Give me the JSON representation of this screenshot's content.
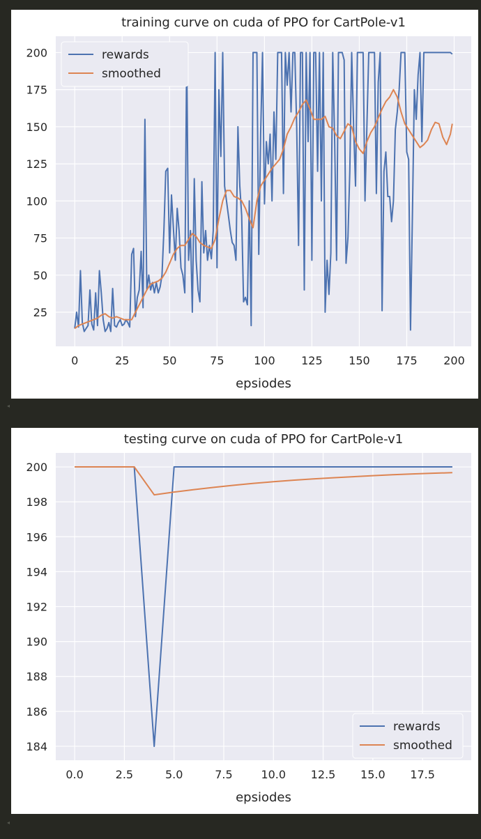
{
  "colors": {
    "background": "#272822",
    "plot_bg": "#eaeaf2",
    "rewards": "#4c72b0",
    "smoothed": "#dd8452"
  },
  "chart_data": [
    {
      "type": "line",
      "title": "training curve on cuda of PPO for CartPole-v1",
      "xlabel": "epsiodes",
      "ylabel": "",
      "xlim": [
        -10,
        209
      ],
      "ylim": [
        2,
        211
      ],
      "xticks": [
        0,
        25,
        50,
        75,
        100,
        125,
        150,
        175,
        200
      ],
      "xtick_labels": [
        "0",
        "25",
        "50",
        "75",
        "100",
        "125",
        "150",
        "175",
        "200"
      ],
      "yticks": [
        25,
        50,
        75,
        100,
        125,
        150,
        175,
        200
      ],
      "ytick_labels": [
        "25",
        "50",
        "75",
        "100",
        "125",
        "150",
        "175",
        "200"
      ],
      "grid": true,
      "legend": "upper left",
      "series": [
        {
          "name": "rewards",
          "color": "#4c72b0",
          "x": [
            0,
            1,
            2,
            3,
            4,
            5,
            6,
            7,
            8,
            9,
            10,
            11,
            12,
            13,
            14,
            15,
            16,
            17,
            18,
            19,
            20,
            21,
            22,
            23,
            24,
            25,
            26,
            27,
            28,
            29,
            30,
            31,
            32,
            33,
            34,
            35,
            36,
            37,
            38,
            39,
            40,
            41,
            42,
            43,
            44,
            45,
            46,
            47,
            48,
            49,
            50,
            51,
            52,
            53,
            54,
            55,
            56,
            57,
            58,
            59,
            60,
            61,
            62,
            63,
            64,
            65,
            66,
            67,
            68,
            69,
            70,
            71,
            72,
            73,
            74,
            75,
            76,
            77,
            78,
            79,
            80,
            81,
            82,
            83,
            84,
            85,
            86,
            87,
            88,
            89,
            90,
            91,
            92,
            93,
            94,
            95,
            96,
            97,
            98,
            99,
            100,
            101,
            102,
            103,
            104,
            105,
            106,
            107,
            108,
            109,
            110,
            111,
            112,
            113,
            114,
            115,
            116,
            117,
            118,
            119,
            120,
            121,
            122,
            123,
            124,
            125,
            126,
            127,
            128,
            129,
            130,
            131,
            132,
            133,
            134,
            135,
            136,
            137,
            138,
            139,
            140,
            141,
            142,
            143,
            144,
            145,
            146,
            147,
            148,
            149,
            150,
            151,
            152,
            153,
            154,
            155,
            156,
            157,
            158,
            159,
            160,
            161,
            162,
            163,
            164,
            165,
            166,
            167,
            168,
            169,
            170,
            171,
            172,
            173,
            174,
            175,
            176,
            177,
            178,
            179,
            180,
            181,
            182,
            183,
            184,
            185,
            186,
            187,
            188,
            189,
            190,
            191,
            192,
            193,
            194,
            195,
            196,
            197,
            198,
            199
          ],
          "values": [
            14,
            25,
            15,
            53,
            18,
            12,
            14,
            16,
            40,
            17,
            13,
            38,
            16,
            53,
            38,
            20,
            12,
            14,
            18,
            12,
            41,
            16,
            15,
            18,
            20,
            16,
            17,
            20,
            18,
            15,
            64,
            68,
            22,
            35,
            40,
            66,
            28,
            155,
            40,
            50,
            40,
            45,
            38,
            45,
            38,
            42,
            50,
            80,
            120,
            122,
            65,
            104,
            82,
            60,
            95,
            80,
            55,
            50,
            38,
            200,
            60,
            80,
            25,
            115,
            60,
            40,
            32,
            113,
            65,
            80,
            60,
            70,
            61,
            80,
            200,
            55,
            175,
            130,
            200,
            110,
            100,
            90,
            80,
            72,
            70,
            60,
            150,
            110,
            90,
            32,
            35,
            30,
            100,
            16,
            200,
            200,
            200,
            64,
            145,
            200,
            98,
            140,
            125,
            145,
            100,
            160,
            128,
            200,
            200,
            200,
            105,
            200,
            178,
            200,
            160,
            200,
            200,
            150,
            70,
            200,
            200,
            40,
            200,
            140,
            200,
            60,
            200,
            200,
            120,
            200,
            100,
            200,
            25,
            60,
            37,
            65,
            200,
            140,
            60,
            200,
            200,
            200,
            195,
            58,
            75,
            120,
            200,
            150,
            110,
            200,
            200,
            200,
            200,
            100,
            150,
            200,
            200,
            200,
            200,
            105,
            180,
            200,
            26,
            120,
            133,
            103,
            103,
            86,
            100,
            148,
            160,
            175,
            200,
            200,
            200,
            133,
            128,
            13,
            90,
            175,
            155,
            185,
            200,
            140,
            200,
            200,
            200,
            200,
            200,
            200,
            200,
            200,
            200,
            200,
            200,
            200,
            200,
            200,
            200,
            199
          ],
          "note": "values estimated from plot"
        },
        {
          "name": "smoothed",
          "color": "#dd8452",
          "x": [
            0,
            2,
            4,
            6,
            8,
            10,
            12,
            14,
            16,
            18,
            20,
            22,
            24,
            26,
            28,
            30,
            32,
            34,
            36,
            38,
            40,
            42,
            44,
            46,
            48,
            50,
            52,
            54,
            56,
            58,
            60,
            62,
            64,
            66,
            68,
            70,
            72,
            74,
            76,
            78,
            80,
            82,
            84,
            86,
            88,
            90,
            92,
            94,
            96,
            98,
            100,
            102,
            104,
            106,
            108,
            110,
            112,
            114,
            116,
            118,
            120,
            122,
            124,
            126,
            128,
            130,
            132,
            134,
            136,
            138,
            140,
            142,
            144,
            146,
            148,
            150,
            152,
            154,
            156,
            158,
            160,
            162,
            164,
            166,
            168,
            170,
            172,
            174,
            176,
            178,
            180,
            182,
            184,
            186,
            188,
            190,
            192,
            194,
            196,
            198,
            199
          ],
          "values": [
            14,
            16,
            17,
            18,
            19,
            20,
            21,
            23,
            24,
            22,
            21,
            22,
            21,
            20,
            20,
            20,
            25,
            30,
            35,
            40,
            44,
            45,
            46,
            48,
            52,
            58,
            64,
            68,
            70,
            70,
            74,
            78,
            76,
            72,
            70,
            69,
            68,
            74,
            88,
            100,
            107,
            107,
            103,
            102,
            100,
            95,
            88,
            82,
            100,
            110,
            114,
            118,
            122,
            125,
            128,
            135,
            145,
            150,
            156,
            160,
            165,
            168,
            162,
            155,
            155,
            155,
            157,
            150,
            149,
            144,
            142,
            147,
            152,
            150,
            140,
            135,
            132,
            140,
            146,
            150,
            156,
            162,
            167,
            170,
            175,
            170,
            160,
            152,
            148,
            144,
            140,
            136,
            138,
            141,
            148,
            153,
            152,
            143,
            138,
            145,
            152
          ]
        }
      ]
    },
    {
      "type": "line",
      "title": "testing curve on cuda of PPO for CartPole-v1",
      "xlabel": "epsiodes",
      "ylabel": "",
      "xlim": [
        -0.95,
        19.95
      ],
      "ylim": [
        183.2,
        200.8
      ],
      "xticks": [
        0,
        2.5,
        5,
        7.5,
        10,
        12.5,
        15,
        17.5
      ],
      "xtick_labels": [
        "0.0",
        "2.5",
        "5.0",
        "7.5",
        "10.0",
        "12.5",
        "15.0",
        "17.5"
      ],
      "yticks": [
        184,
        186,
        188,
        190,
        192,
        194,
        196,
        198,
        200
      ],
      "ytick_labels": [
        "184",
        "186",
        "188",
        "190",
        "192",
        "194",
        "196",
        "198",
        "200"
      ],
      "grid": true,
      "legend": "lower right",
      "series": [
        {
          "name": "rewards",
          "color": "#4c72b0",
          "x": [
            0,
            1,
            2,
            3,
            4,
            5,
            6,
            7,
            8,
            9,
            10,
            11,
            12,
            13,
            14,
            15,
            16,
            17,
            18,
            19
          ],
          "values": [
            200,
            200,
            200,
            200,
            184,
            200,
            200,
            200,
            200,
            200,
            200,
            200,
            200,
            200,
            200,
            200,
            200,
            200,
            200,
            200
          ]
        },
        {
          "name": "smoothed",
          "color": "#dd8452",
          "x": [
            0,
            1,
            2,
            3,
            4,
            5,
            6,
            7,
            8,
            9,
            10,
            11,
            12,
            13,
            14,
            15,
            16,
            17,
            18,
            19
          ],
          "values": [
            200,
            200,
            200,
            200,
            198.4,
            198.56,
            198.7,
            198.83,
            198.95,
            199.06,
            199.15,
            199.24,
            199.31,
            199.38,
            199.44,
            199.5,
            199.55,
            199.6,
            199.64,
            199.67
          ]
        }
      ]
    }
  ]
}
